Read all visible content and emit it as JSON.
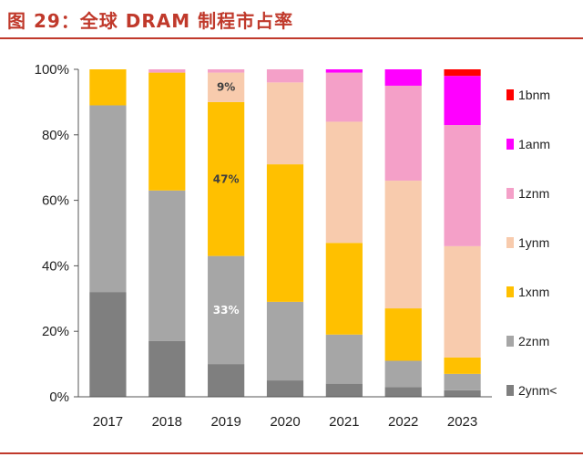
{
  "figure": {
    "title": "图 29：全球 DRAM 制程市占率"
  },
  "chart_data": {
    "type": "bar",
    "stacked": true,
    "title": "",
    "xlabel": "",
    "ylabel": "",
    "ylim": [
      0,
      100
    ],
    "ytick_values": [
      0,
      20,
      40,
      60,
      80,
      100
    ],
    "ytick_labels": [
      "0%",
      "20%",
      "40%",
      "60%",
      "80%",
      "100%"
    ],
    "legend_position": "right",
    "categories": [
      "2017",
      "2018",
      "2019",
      "2020",
      "2021",
      "2022",
      "2023"
    ],
    "series": [
      {
        "name": "2ynm<",
        "color": "#7f7f7f",
        "values": [
          32,
          17,
          10,
          5,
          4,
          3,
          2
        ]
      },
      {
        "name": "2znm",
        "color": "#a6a6a6",
        "values": [
          57,
          46,
          33,
          24,
          15,
          8,
          5
        ]
      },
      {
        "name": "1xnm",
        "color": "#ffc000",
        "values": [
          11,
          36,
          47,
          42,
          28,
          16,
          5
        ]
      },
      {
        "name": "1ynm",
        "color": "#f8cbad",
        "values": [
          0,
          0,
          9,
          25,
          37,
          39,
          34
        ]
      },
      {
        "name": "1znm",
        "color": "#f4a0c8",
        "values": [
          0,
          1,
          1,
          4,
          15,
          29,
          37
        ]
      },
      {
        "name": "1anm",
        "color": "#ff00ff",
        "values": [
          0,
          0,
          0,
          0,
          1,
          5,
          15
        ]
      },
      {
        "name": "1bnm",
        "color": "#ff0000",
        "values": [
          0,
          0,
          0,
          0,
          0,
          0,
          2
        ]
      }
    ],
    "data_labels": [
      {
        "category": "2019",
        "series": "2znm",
        "text": "33%",
        "color": "#ffffff"
      },
      {
        "category": "2019",
        "series": "1xnm",
        "text": "47%",
        "color": "#404040"
      },
      {
        "category": "2019",
        "series": "1ynm",
        "text": "9%",
        "color": "#404040"
      }
    ]
  }
}
